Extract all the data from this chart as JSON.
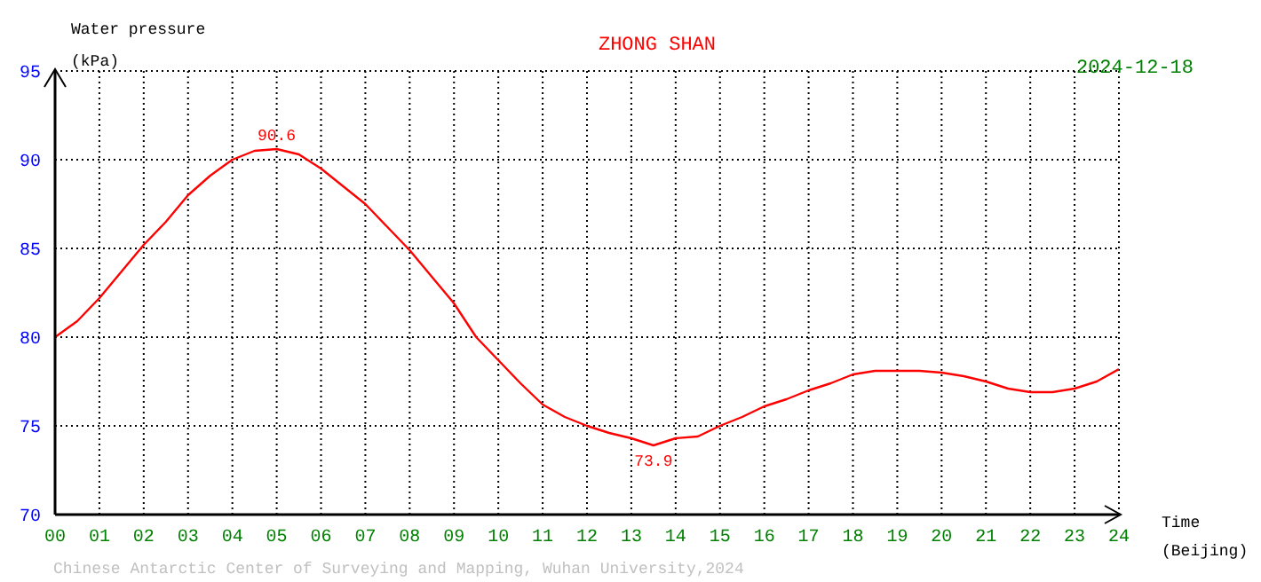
{
  "chart_data": {
    "type": "line",
    "title": "ZHONG SHAN",
    "subtitle": "2024-12-18",
    "xlabel": "Time (Beijing)",
    "ylabel": "Water pressure (kPa)",
    "x": [
      0,
      0.5,
      1,
      1.5,
      2,
      2.5,
      3,
      3.5,
      4,
      4.5,
      5,
      5.5,
      6,
      6.5,
      7,
      7.5,
      8,
      8.5,
      9,
      9.5,
      10,
      10.5,
      11,
      11.5,
      12,
      12.5,
      13,
      13.5,
      14,
      14.5,
      15,
      15.5,
      16,
      16.5,
      17,
      17.5,
      18,
      18.5,
      19,
      19.5,
      20,
      20.5,
      21,
      21.5,
      22,
      22.5,
      23,
      23.5,
      24
    ],
    "series": [
      {
        "color": "#ff0000",
        "values": [
          80.0,
          80.9,
          82.2,
          83.7,
          85.2,
          86.5,
          88.0,
          89.1,
          90.0,
          90.5,
          90.6,
          90.3,
          89.5,
          88.5,
          87.5,
          86.2,
          84.9,
          83.4,
          81.9,
          80.0,
          78.7,
          77.4,
          76.2,
          75.5,
          75.0,
          74.6,
          74.3,
          73.9,
          74.3,
          74.4,
          75.0,
          75.5,
          76.1,
          76.5,
          77.0,
          77.4,
          77.9,
          78.1,
          78.1,
          78.1,
          78.0,
          77.8,
          77.5,
          77.1,
          76.9,
          76.9,
          77.1,
          77.5,
          78.2
        ]
      }
    ],
    "xlim": [
      0,
      24
    ],
    "xticks": [
      {
        "value": 0,
        "label": "00"
      },
      {
        "value": 1,
        "label": "01"
      },
      {
        "value": 2,
        "label": "02"
      },
      {
        "value": 3,
        "label": "03"
      },
      {
        "value": 4,
        "label": "04"
      },
      {
        "value": 5,
        "label": "05"
      },
      {
        "value": 6,
        "label": "06"
      },
      {
        "value": 7,
        "label": "07"
      },
      {
        "value": 8,
        "label": "08"
      },
      {
        "value": 9,
        "label": "09"
      },
      10,
      11,
      12,
      13,
      14,
      15,
      16,
      17,
      18,
      19,
      20,
      21,
      22,
      23,
      24
    ],
    "ylim": [
      70,
      95
    ],
    "yticks": [
      70,
      75,
      80,
      85,
      90,
      95
    ],
    "grid": true,
    "line_style": "solid",
    "marker": "none",
    "annotations": [
      {
        "text": "90.6",
        "x": 5,
        "y": 90.6
      },
      {
        "text": "73.9",
        "x": 13.5,
        "y": 73.9
      },
      "Chinese Antarctic Center of Surveying and Mapping, Wuhan University,2024"
    ]
  }
}
